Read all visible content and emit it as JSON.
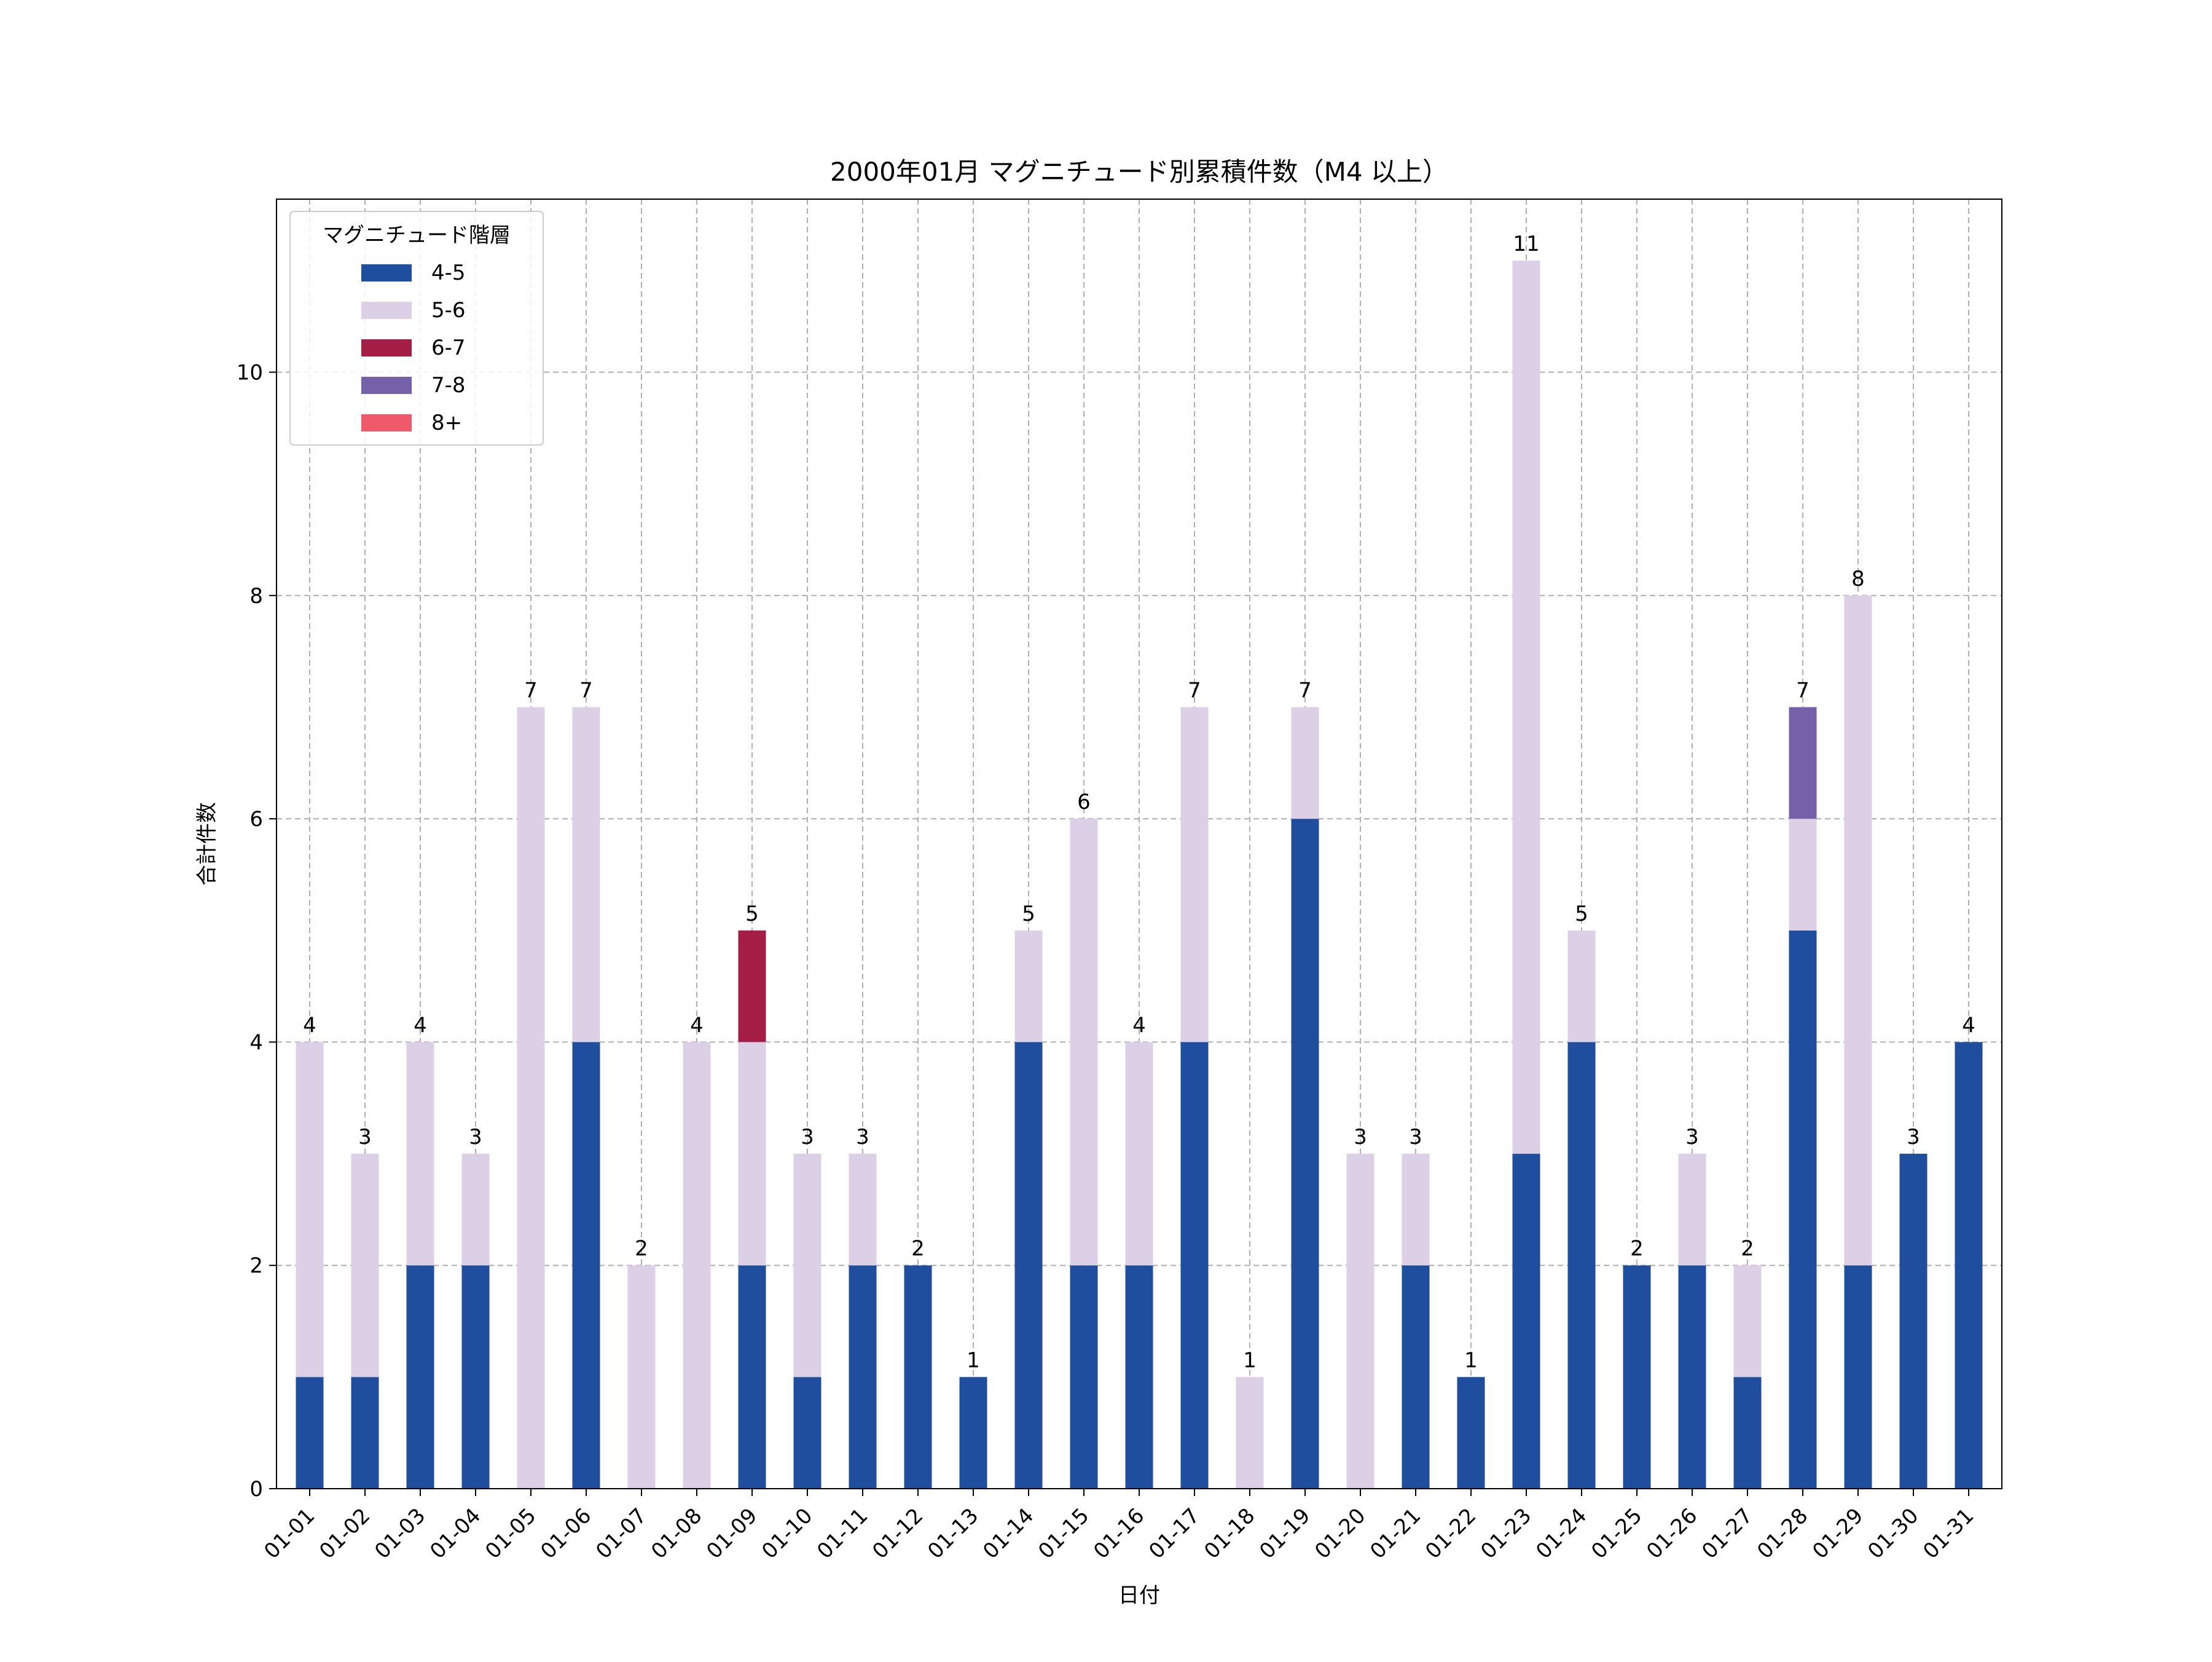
{
  "chart_data": {
    "type": "bar",
    "stacked": true,
    "title": "2000年01月 マグニチュード別累積件数（M4 以上）",
    "xlabel": "日付",
    "ylabel": "合計件数",
    "ylim": [
      0,
      11.55
    ],
    "yticks": [
      0,
      2,
      4,
      6,
      8,
      10
    ],
    "grid": true,
    "legend": {
      "title": "マグニチュード階層",
      "placement": "top-left"
    },
    "categories": [
      "01-01",
      "01-02",
      "01-03",
      "01-04",
      "01-05",
      "01-06",
      "01-07",
      "01-08",
      "01-09",
      "01-10",
      "01-11",
      "01-12",
      "01-13",
      "01-14",
      "01-15",
      "01-16",
      "01-17",
      "01-18",
      "01-19",
      "01-20",
      "01-21",
      "01-22",
      "01-23",
      "01-24",
      "01-25",
      "01-26",
      "01-27",
      "01-28",
      "01-29",
      "01-30",
      "01-31"
    ],
    "series": [
      {
        "name": "4-5",
        "color": "#1f4e9e",
        "values": [
          1,
          1,
          2,
          2,
          0,
          4,
          0,
          0,
          2,
          1,
          2,
          2,
          1,
          4,
          2,
          2,
          4,
          0,
          6,
          0,
          2,
          1,
          3,
          4,
          2,
          2,
          1,
          5,
          2,
          3,
          4
        ]
      },
      {
        "name": "5-6",
        "color": "#dcd0e6",
        "values": [
          3,
          2,
          2,
          1,
          7,
          3,
          2,
          4,
          2,
          2,
          1,
          0,
          0,
          1,
          4,
          2,
          3,
          1,
          1,
          3,
          1,
          0,
          8,
          1,
          0,
          1,
          1,
          1,
          6,
          0,
          0
        ]
      },
      {
        "name": "6-7",
        "color": "#a51e45",
        "values": [
          0,
          0,
          0,
          0,
          0,
          0,
          0,
          0,
          1,
          0,
          0,
          0,
          0,
          0,
          0,
          0,
          0,
          0,
          0,
          0,
          0,
          0,
          0,
          0,
          0,
          0,
          0,
          0,
          0,
          0,
          0
        ]
      },
      {
        "name": "7-8",
        "color": "#7560aa",
        "values": [
          0,
          0,
          0,
          0,
          0,
          0,
          0,
          0,
          0,
          0,
          0,
          0,
          0,
          0,
          0,
          0,
          0,
          0,
          0,
          0,
          0,
          0,
          0,
          0,
          0,
          0,
          0,
          1,
          0,
          0,
          0
        ]
      },
      {
        "name": "8+",
        "color": "#ee5a6a",
        "values": [
          0,
          0,
          0,
          0,
          0,
          0,
          0,
          0,
          0,
          0,
          0,
          0,
          0,
          0,
          0,
          0,
          0,
          0,
          0,
          0,
          0,
          0,
          0,
          0,
          0,
          0,
          0,
          0,
          0,
          0,
          0
        ]
      }
    ],
    "totals": [
      4,
      3,
      4,
      3,
      7,
      7,
      2,
      4,
      5,
      3,
      3,
      2,
      1,
      5,
      6,
      4,
      7,
      1,
      7,
      3,
      3,
      1,
      11,
      5,
      2,
      3,
      2,
      7,
      8,
      3,
      4
    ]
  }
}
